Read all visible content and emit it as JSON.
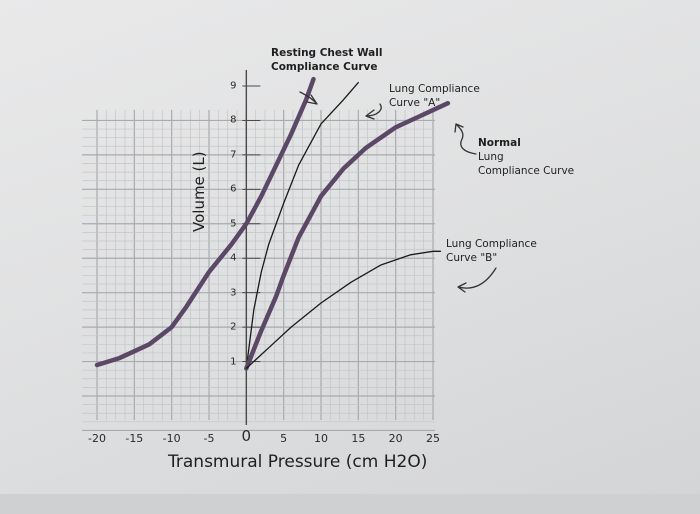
{
  "chart_data": {
    "type": "line",
    "title": "",
    "xlabel": "Transmural Pressure (cm H2O)",
    "ylabel": "Volume (L)",
    "xlim": [
      -20,
      25
    ],
    "ylim": [
      0,
      9
    ],
    "x_ticks": [
      "-20",
      "-15",
      "-10",
      "-5",
      "0",
      "5",
      "10",
      "15",
      "20",
      "25"
    ],
    "y_ticks": [
      "1",
      "2",
      "3",
      "4",
      "5",
      "6",
      "7",
      "8",
      "9"
    ],
    "grid": true,
    "series": [
      {
        "name": "Resting Chest Wall Compliance Curve",
        "color": "#5b4766",
        "x": [
          -20,
          -17,
          -13,
          -10,
          -8,
          -5,
          -2,
          0,
          2,
          4,
          6,
          8,
          9
        ],
        "y": [
          0.9,
          1.1,
          1.5,
          2.0,
          2.6,
          3.6,
          4.4,
          5.0,
          5.8,
          6.7,
          7.6,
          8.6,
          9.2
        ]
      },
      {
        "name": "Lung Compliance Curve \"A\"",
        "color": "#1a1a1a",
        "x": [
          0,
          1,
          2,
          3,
          5,
          7,
          10,
          13,
          15
        ],
        "y": [
          0.8,
          2.5,
          3.6,
          4.4,
          5.6,
          6.7,
          7.9,
          8.6,
          9.1
        ]
      },
      {
        "name": "Normal Lung Compliance Curve",
        "color": "#5b4766",
        "x": [
          0,
          2,
          4,
          5,
          7,
          10,
          13,
          16,
          20,
          23,
          25,
          27
        ],
        "y": [
          0.8,
          1.9,
          2.9,
          3.5,
          4.6,
          5.8,
          6.6,
          7.2,
          7.8,
          8.1,
          8.3,
          8.5
        ]
      },
      {
        "name": "Lung Compliance Curve \"B\"",
        "color": "#1a1a1a",
        "x": [
          0,
          3,
          6,
          10,
          14,
          18,
          22,
          25,
          26
        ],
        "y": [
          0.8,
          1.4,
          2.0,
          2.7,
          3.3,
          3.8,
          4.1,
          4.2,
          4.2
        ]
      }
    ],
    "annotations": {
      "chest_wall": [
        "Resting Chest Wall",
        "Compliance Curve"
      ],
      "curve_a": [
        "Lung Compliance",
        "Curve \"A\""
      ],
      "normal": [
        "Normal",
        "Lung",
        "Compliance Curve"
      ],
      "curve_b": [
        "Lung Compliance",
        "Curve \"B\""
      ]
    }
  }
}
